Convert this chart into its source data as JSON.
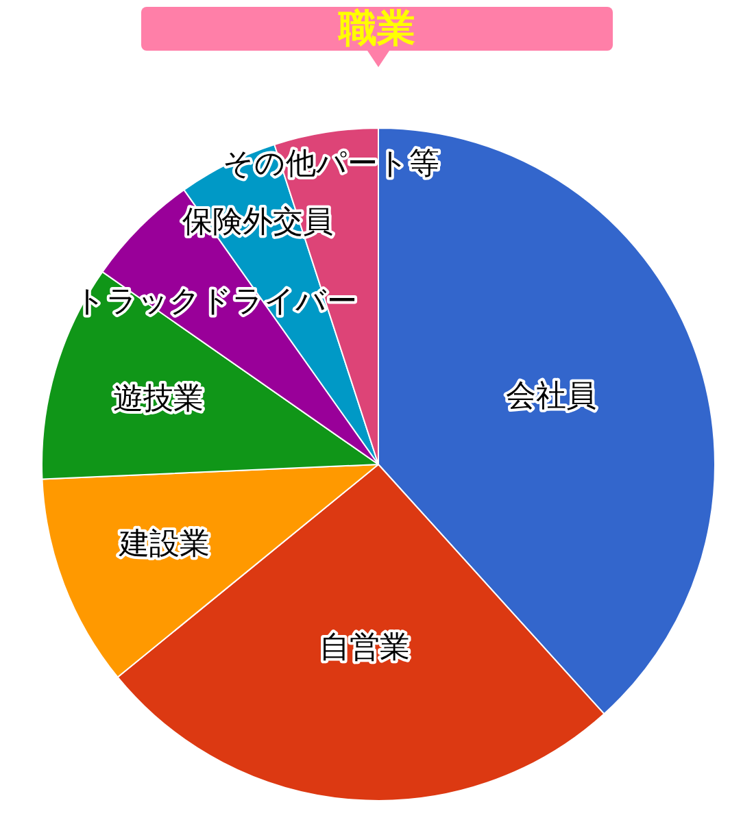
{
  "chart_data": {
    "type": "pie",
    "title": "職業",
    "categories": [
      "会社員",
      "自営業",
      "建設業",
      "遊技業",
      "トラックドライバー",
      "保険外交員",
      "その他パート等"
    ],
    "values": [
      38.3,
      25.8,
      10.2,
      10.4,
      5.5,
      4.8,
      5.0
    ],
    "colors": [
      "#3366cc",
      "#dc3912",
      "#ff9900",
      "#109618",
      "#990099",
      "#0099c6",
      "#dd4477"
    ],
    "legend": false
  }
}
